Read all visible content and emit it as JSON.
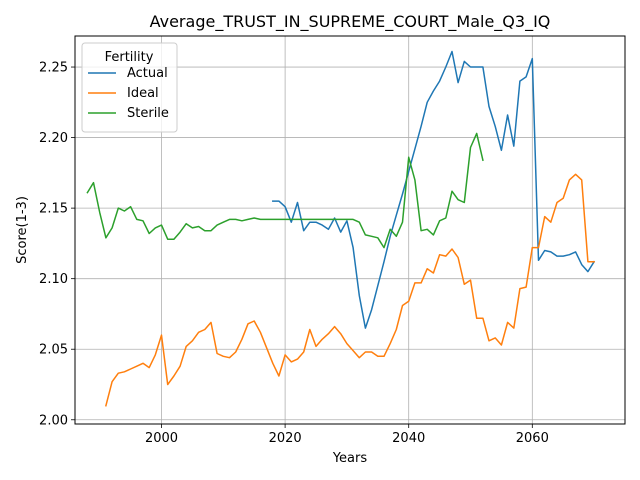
{
  "chart_data": {
    "type": "line",
    "title": "Average_TRUST_IN_SUPREME_COURT_Male_Q3_IQ",
    "xlabel": "Years",
    "ylabel": "Score(1-3)",
    "xlim": [
      1986,
      2075
    ],
    "ylim": [
      1.997,
      2.272
    ],
    "xticks": [
      2000,
      2020,
      2040,
      2060
    ],
    "yticks": [
      2.0,
      2.05,
      2.1,
      2.15,
      2.2,
      2.25
    ],
    "xtick_labels": [
      "2000",
      "2020",
      "2040",
      "2060"
    ],
    "ytick_labels": [
      "2.00",
      "2.05",
      "2.10",
      "2.15",
      "2.20",
      "2.25"
    ],
    "grid": true,
    "legend": {
      "title": "Fertility",
      "position": "top-left"
    },
    "series": [
      {
        "name": "Actual",
        "color": "#1f77b4",
        "x": [
          2018,
          2019,
          2020,
          2021,
          2022,
          2023,
          2024,
          2025,
          2026,
          2027,
          2028,
          2029,
          2030,
          2031,
          2032,
          2033,
          2034,
          2035,
          2036,
          2037,
          2038,
          2039,
          2040,
          2041,
          2042,
          2043,
          2044,
          2045,
          2046,
          2047,
          2048,
          2049,
          2050,
          2051,
          2052,
          2053,
          2054,
          2055,
          2056,
          2057,
          2058,
          2059,
          2060,
          2061,
          2062,
          2063,
          2064,
          2065,
          2066,
          2067,
          2068,
          2069,
          2070
        ],
        "y": [
          2.155,
          2.155,
          2.151,
          2.14,
          2.154,
          2.134,
          2.14,
          2.14,
          2.138,
          2.135,
          2.143,
          2.133,
          2.141,
          2.122,
          2.088,
          2.065,
          2.078,
          2.095,
          2.112,
          2.13,
          2.145,
          2.16,
          2.176,
          2.192,
          2.208,
          2.225,
          2.233,
          2.24,
          2.25,
          2.261,
          2.239,
          2.254,
          2.25,
          2.25,
          2.25,
          2.222,
          2.208,
          2.191,
          2.216,
          2.194,
          2.24,
          2.243,
          2.256,
          2.113,
          2.12,
          2.119,
          2.116,
          2.116,
          2.117,
          2.119,
          2.11,
          2.105,
          2.112
        ]
      },
      {
        "name": "Ideal",
        "color": "#ff7f0e",
        "x": [
          1991,
          1992,
          1993,
          1994,
          1995,
          1996,
          1997,
          1998,
          1999,
          2000,
          2001,
          2002,
          2003,
          2004,
          2005,
          2006,
          2007,
          2008,
          2009,
          2010,
          2011,
          2012,
          2013,
          2014,
          2015,
          2016,
          2017,
          2018,
          2019,
          2020,
          2021,
          2022,
          2023,
          2024,
          2025,
          2026,
          2027,
          2028,
          2029,
          2030,
          2031,
          2032,
          2033,
          2034,
          2035,
          2036,
          2037,
          2038,
          2039,
          2040,
          2041,
          2042,
          2043,
          2044,
          2045,
          2046,
          2047,
          2048,
          2049,
          2050,
          2051,
          2052,
          2053,
          2054,
          2055,
          2056,
          2057,
          2058,
          2059,
          2060,
          2061,
          2062,
          2063,
          2064,
          2065,
          2066,
          2067,
          2068,
          2069,
          2070
        ],
        "y": [
          2.01,
          2.027,
          2.033,
          2.034,
          2.036,
          2.038,
          2.04,
          2.037,
          2.046,
          2.06,
          2.025,
          2.031,
          2.038,
          2.052,
          2.056,
          2.062,
          2.064,
          2.069,
          2.047,
          2.045,
          2.044,
          2.048,
          2.057,
          2.068,
          2.07,
          2.062,
          2.051,
          2.04,
          2.031,
          2.046,
          2.041,
          2.043,
          2.048,
          2.064,
          2.052,
          2.057,
          2.061,
          2.066,
          2.061,
          2.054,
          2.049,
          2.044,
          2.048,
          2.048,
          2.045,
          2.045,
          2.054,
          2.064,
          2.081,
          2.084,
          2.097,
          2.097,
          2.107,
          2.104,
          2.117,
          2.116,
          2.121,
          2.115,
          2.096,
          2.099,
          2.072,
          2.072,
          2.056,
          2.058,
          2.053,
          2.069,
          2.065,
          2.093,
          2.094,
          2.122,
          2.122,
          2.144,
          2.14,
          2.154,
          2.157,
          2.17,
          2.174,
          2.17,
          2.112,
          2.112
        ]
      },
      {
        "name": "Sterile",
        "color": "#2ca02c",
        "x": [
          1988,
          1989,
          1990,
          1991,
          1992,
          1993,
          1994,
          1995,
          1996,
          1997,
          1998,
          1999,
          2000,
          2001,
          2002,
          2003,
          2004,
          2005,
          2006,
          2007,
          2008,
          2009,
          2010,
          2011,
          2012,
          2013,
          2014,
          2015,
          2016,
          2017,
          2018,
          2019,
          2020,
          2021,
          2022,
          2023,
          2024,
          2025,
          2026,
          2027,
          2028,
          2029,
          2030,
          2031,
          2032,
          2033,
          2034,
          2035,
          2036,
          2037,
          2038,
          2039,
          2040,
          2041,
          2042,
          2043,
          2044,
          2045,
          2046,
          2047,
          2048,
          2049,
          2050,
          2051,
          2052
        ],
        "y": [
          2.161,
          2.168,
          2.147,
          2.129,
          2.136,
          2.15,
          2.148,
          2.151,
          2.142,
          2.141,
          2.132,
          2.136,
          2.138,
          2.128,
          2.128,
          2.133,
          2.139,
          2.136,
          2.137,
          2.134,
          2.134,
          2.138,
          2.14,
          2.142,
          2.142,
          2.141,
          2.142,
          2.143,
          2.142,
          2.142,
          2.142,
          2.142,
          2.142,
          2.142,
          2.142,
          2.142,
          2.142,
          2.142,
          2.142,
          2.142,
          2.142,
          2.142,
          2.142,
          2.142,
          2.14,
          2.131,
          2.13,
          2.129,
          2.122,
          2.135,
          2.13,
          2.14,
          2.186,
          2.17,
          2.134,
          2.135,
          2.131,
          2.141,
          2.143,
          2.162,
          2.156,
          2.154,
          2.193,
          2.203,
          2.184
        ]
      }
    ]
  }
}
